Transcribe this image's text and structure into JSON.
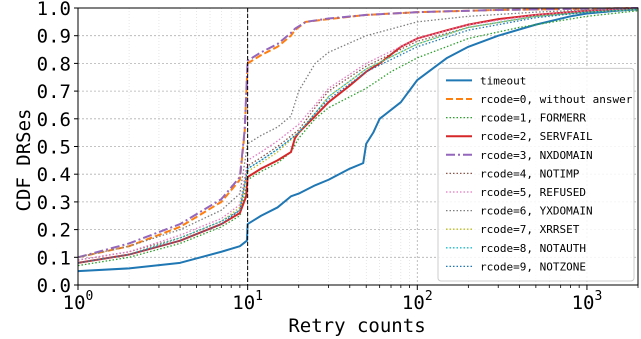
{
  "chart_data": {
    "type": "line",
    "xlabel": "Retry counts",
    "ylabel": "CDF DRSes",
    "xscale": "log",
    "xlim": [
      1,
      2000
    ],
    "ylim": [
      0,
      1.0
    ],
    "x_ticks": [
      1,
      10,
      100,
      1000
    ],
    "x_tick_labels": [
      {
        "base": "10",
        "exp": "0"
      },
      {
        "base": "10",
        "exp": "1"
      },
      {
        "base": "10",
        "exp": "2"
      },
      {
        "base": "10",
        "exp": "3"
      }
    ],
    "y_ticks": [
      0.0,
      0.1,
      0.2,
      0.3,
      0.4,
      0.5,
      0.6,
      0.7,
      0.8,
      0.9,
      1.0
    ],
    "y_tick_labels": [
      "0.0",
      "0.1",
      "0.2",
      "0.3",
      "0.4",
      "0.5",
      "0.6",
      "0.7",
      "0.8",
      "0.9",
      "1.0"
    ],
    "grid": true,
    "vertical_reference_line": {
      "x": 10,
      "style": "dashed",
      "color": "#000000"
    },
    "legend_position": "lower right",
    "series": [
      {
        "name": "timeout",
        "color": "#1f77b4",
        "style": "solid",
        "width": 2,
        "x": [
          1,
          2,
          4,
          7,
          9,
          9.9,
          10,
          12,
          15,
          18,
          20,
          25,
          30,
          40,
          48,
          50,
          55,
          60,
          80,
          100,
          150,
          200,
          300,
          500,
          800,
          1000,
          1500,
          2000
        ],
        "y": [
          0.05,
          0.06,
          0.08,
          0.12,
          0.14,
          0.16,
          0.22,
          0.25,
          0.28,
          0.32,
          0.33,
          0.36,
          0.38,
          0.42,
          0.44,
          0.51,
          0.55,
          0.6,
          0.66,
          0.74,
          0.82,
          0.86,
          0.9,
          0.94,
          0.97,
          0.98,
          0.99,
          0.995
        ]
      },
      {
        "name": "rcode=0, without answer",
        "color": "#ff7f0e",
        "style": "dashed",
        "width": 2,
        "x": [
          1,
          2,
          4,
          7,
          9,
          9.6,
          10,
          12,
          15,
          18,
          19,
          22,
          30,
          50,
          100,
          300,
          2000
        ],
        "y": [
          0.1,
          0.14,
          0.21,
          0.3,
          0.38,
          0.55,
          0.8,
          0.83,
          0.86,
          0.9,
          0.92,
          0.95,
          0.96,
          0.975,
          0.985,
          0.993,
          1.0
        ]
      },
      {
        "name": "rcode=1, FORMERR",
        "color": "#2ca02c",
        "style": "dotted",
        "width": 1.3,
        "x": [
          1,
          2,
          4,
          7,
          9,
          10,
          12,
          15,
          18,
          20,
          25,
          30,
          50,
          70,
          100,
          200,
          400,
          1000,
          2000
        ],
        "y": [
          0.07,
          0.1,
          0.15,
          0.21,
          0.25,
          0.38,
          0.41,
          0.44,
          0.48,
          0.53,
          0.6,
          0.64,
          0.71,
          0.77,
          0.82,
          0.89,
          0.93,
          0.97,
          0.99
        ]
      },
      {
        "name": "rcode=2, SERVFAIL",
        "color": "#d62728",
        "style": "solid",
        "width": 2,
        "x": [
          1,
          2,
          4,
          7,
          9,
          9.8,
          10,
          12,
          15,
          18,
          19,
          20,
          25,
          30,
          40,
          50,
          60,
          80,
          100,
          150,
          200,
          300,
          500,
          1000,
          2000
        ],
        "y": [
          0.08,
          0.11,
          0.16,
          0.22,
          0.26,
          0.32,
          0.39,
          0.42,
          0.45,
          0.48,
          0.53,
          0.55,
          0.61,
          0.66,
          0.72,
          0.77,
          0.8,
          0.86,
          0.89,
          0.92,
          0.94,
          0.96,
          0.975,
          0.99,
          1.0
        ]
      },
      {
        "name": "rcode=3, NXDOMAIN",
        "color": "#9467bd",
        "style": "dashdot",
        "width": 2,
        "x": [
          1,
          2,
          4,
          7,
          9,
          9.6,
          10,
          12,
          15,
          18,
          19,
          22,
          30,
          50,
          100,
          300,
          2000
        ],
        "y": [
          0.1,
          0.15,
          0.22,
          0.31,
          0.39,
          0.56,
          0.81,
          0.84,
          0.87,
          0.91,
          0.925,
          0.95,
          0.962,
          0.975,
          0.985,
          0.993,
          1.0
        ]
      },
      {
        "name": "rcode=4, NOTIMP",
        "color": "#8c564b",
        "style": "dotted",
        "width": 1.3,
        "x": [
          1,
          2,
          4,
          7,
          9,
          10,
          12,
          15,
          20,
          25,
          30,
          50,
          100,
          200,
          500,
          1000,
          2000
        ],
        "y": [
          0.09,
          0.12,
          0.17,
          0.23,
          0.27,
          0.43,
          0.46,
          0.5,
          0.56,
          0.64,
          0.7,
          0.79,
          0.88,
          0.93,
          0.97,
          0.985,
          0.995
        ]
      },
      {
        "name": "rcode=5, REFUSED",
        "color": "#e377c2",
        "style": "dotted",
        "width": 1.3,
        "x": [
          1,
          2,
          4,
          7,
          9,
          10,
          12,
          15,
          20,
          25,
          30,
          50,
          100,
          200,
          500,
          1000,
          2000
        ],
        "y": [
          0.09,
          0.12,
          0.18,
          0.24,
          0.29,
          0.45,
          0.48,
          0.52,
          0.58,
          0.65,
          0.71,
          0.8,
          0.89,
          0.94,
          0.975,
          0.99,
          1.0
        ]
      },
      {
        "name": "rcode=6, YXDOMAIN",
        "color": "#7f7f7f",
        "style": "dotted",
        "width": 1.3,
        "x": [
          1,
          2,
          4,
          7,
          9,
          10,
          12,
          15,
          18,
          20,
          25,
          30,
          50,
          100,
          200,
          500,
          1000,
          2000
        ],
        "y": [
          0.1,
          0.14,
          0.2,
          0.27,
          0.33,
          0.51,
          0.54,
          0.57,
          0.61,
          0.7,
          0.8,
          0.84,
          0.9,
          0.95,
          0.97,
          0.985,
          0.993,
          1.0
        ]
      },
      {
        "name": "rcode=7, XRRSET",
        "color": "#bcbd22",
        "style": "dotted",
        "width": 1.3,
        "x": [
          1,
          2,
          4,
          7,
          9,
          10,
          12,
          15,
          20,
          25,
          30,
          50,
          100,
          200,
          500,
          1000,
          2000
        ],
        "y": [
          0.08,
          0.11,
          0.17,
          0.23,
          0.28,
          0.41,
          0.44,
          0.48,
          0.55,
          0.62,
          0.68,
          0.78,
          0.87,
          0.93,
          0.97,
          0.985,
          0.995
        ]
      },
      {
        "name": "rcode=8, NOTAUTH",
        "color": "#17becf",
        "style": "dotted",
        "width": 1.3,
        "x": [
          1,
          2,
          4,
          7,
          9,
          10,
          12,
          15,
          20,
          25,
          30,
          50,
          100,
          200,
          500,
          1000,
          2000
        ],
        "y": [
          0.08,
          0.11,
          0.17,
          0.23,
          0.27,
          0.42,
          0.45,
          0.49,
          0.55,
          0.62,
          0.68,
          0.78,
          0.87,
          0.93,
          0.97,
          0.985,
          0.995
        ]
      },
      {
        "name": "rcode=9, NOTZONE",
        "color": "#1f77b4",
        "style": "dotted",
        "width": 1.3,
        "x": [
          1,
          2,
          4,
          7,
          9,
          10,
          12,
          15,
          20,
          25,
          30,
          50,
          100,
          200,
          500,
          1000,
          2000
        ],
        "y": [
          0.08,
          0.11,
          0.16,
          0.22,
          0.27,
          0.42,
          0.45,
          0.49,
          0.55,
          0.62,
          0.67,
          0.77,
          0.86,
          0.92,
          0.965,
          0.985,
          0.995
        ]
      }
    ]
  }
}
